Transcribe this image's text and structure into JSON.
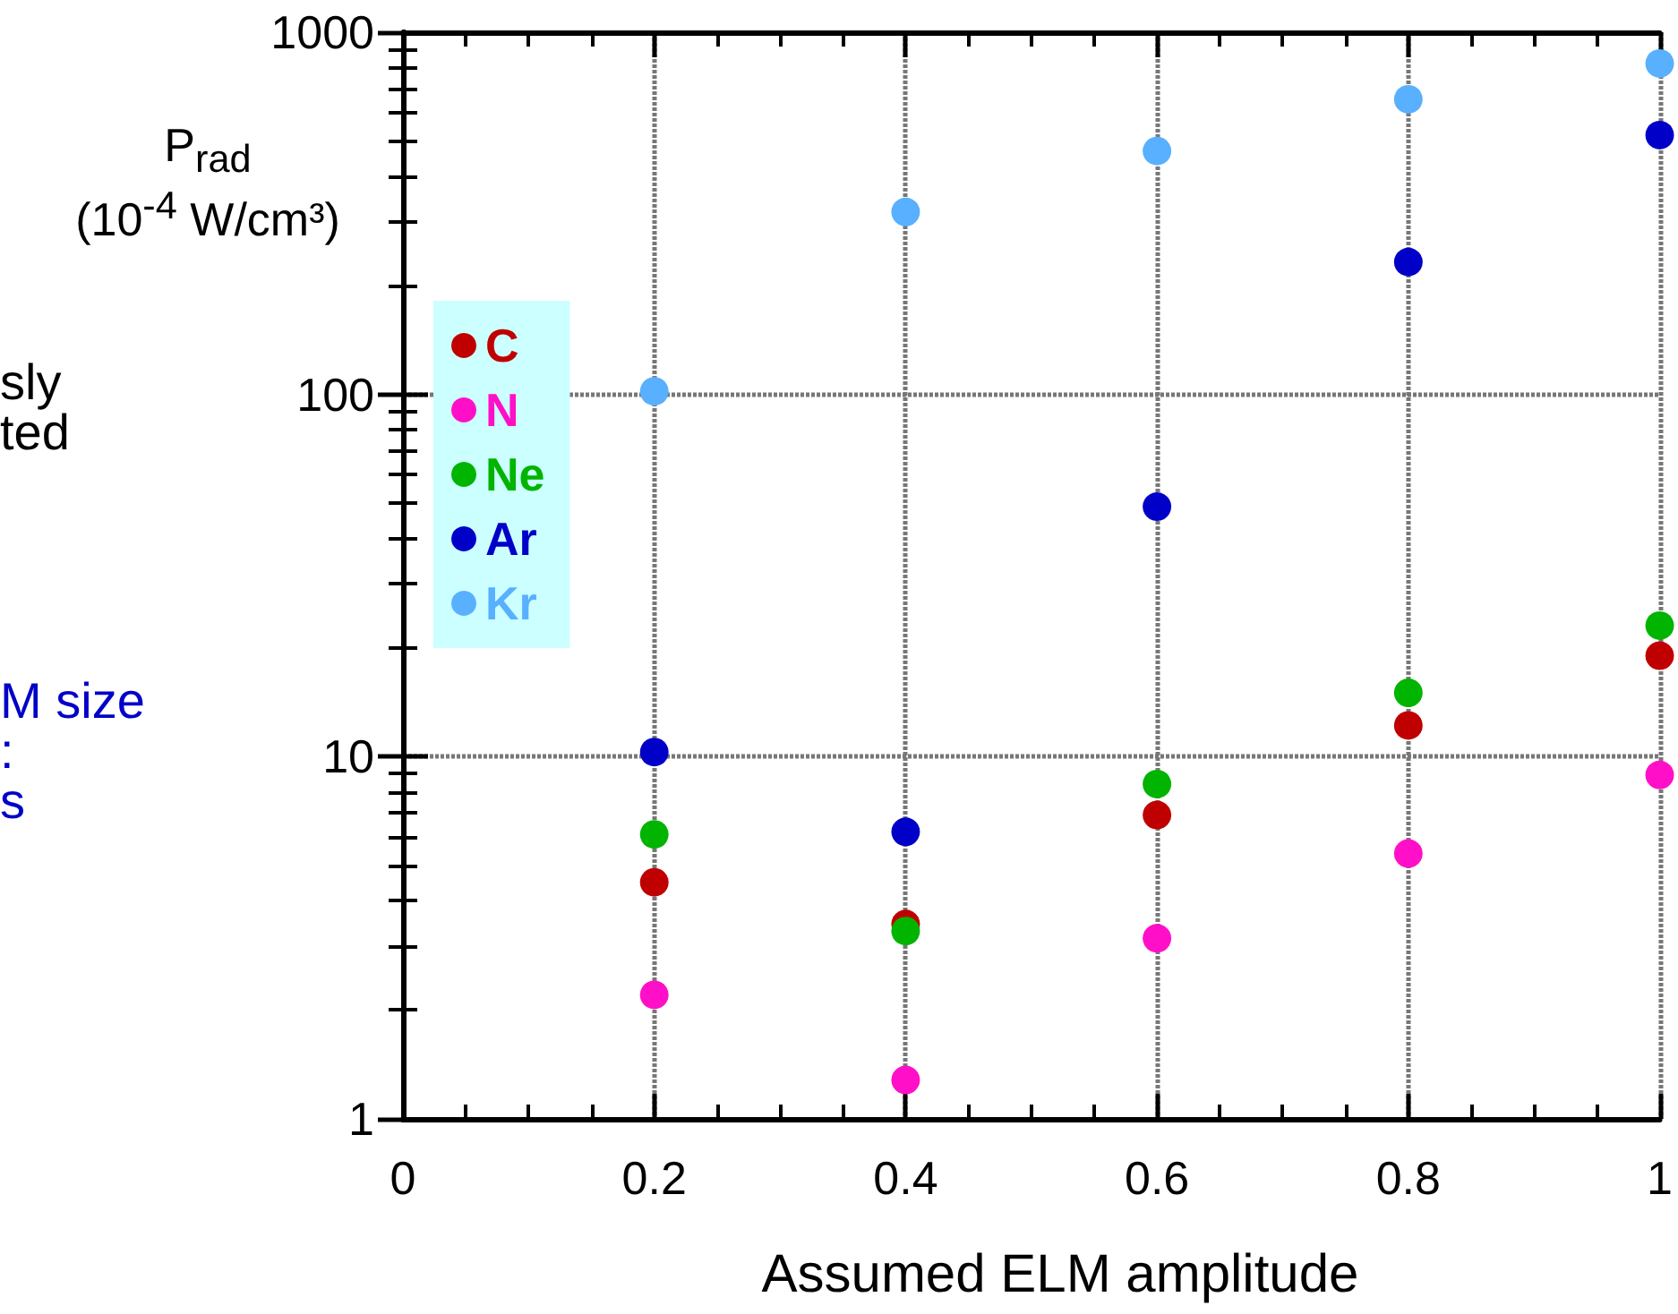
{
  "chart_data": {
    "type": "scatter",
    "xlabel": "Assumed ELM amplitude",
    "ylabel": "P$_{rad}$ (10$^{-4}$ W/cm³)",
    "annotations": [
      "sly\nted",
      "M size\n:\ns"
    ],
    "x": [
      0.2,
      0.4,
      0.6,
      0.8,
      1.0
    ],
    "series": [
      {
        "name": "C",
        "color": "#c00000",
        "values": [
          4.5,
          3.45,
          6.9,
          12.2,
          19
        ]
      },
      {
        "name": "N",
        "color": "#ff10c8",
        "values": [
          2.2,
          1.28,
          3.15,
          5.4,
          8.9
        ]
      },
      {
        "name": "Ne",
        "color": "#00b400",
        "values": [
          6.1,
          3.3,
          8.4,
          15,
          23
        ]
      },
      {
        "name": "Ar",
        "color": "#0000c8",
        "values": [
          10.3,
          6.2,
          49,
          232,
          520
        ]
      },
      {
        "name": "Kr",
        "color": "#58b0ff",
        "values": [
          102,
          319,
          470,
          653,
          820
        ]
      }
    ],
    "xlim": [
      0,
      1
    ],
    "xticks": [
      0,
      0.2,
      0.4,
      0.6,
      0.8,
      1
    ],
    "ylim": [
      1,
      1000
    ],
    "yticks": [
      1,
      10,
      100,
      1000
    ],
    "log": "y",
    "grid": true,
    "legend": "top left",
    "marker": "circle"
  }
}
